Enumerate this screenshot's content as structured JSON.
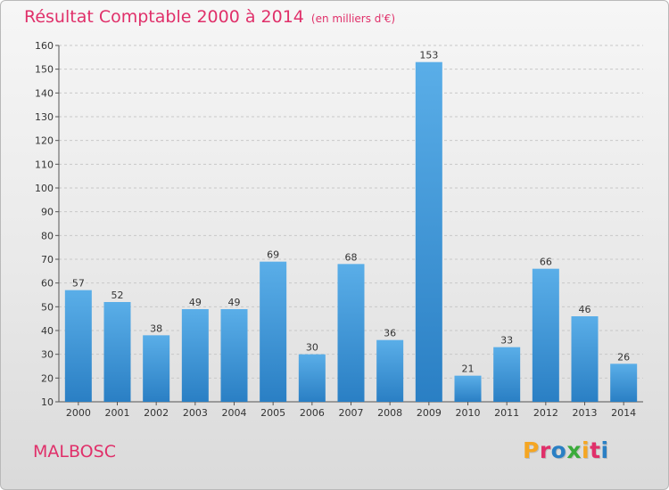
{
  "header": {
    "title": "Résultat Comptable 2000 à 2014",
    "unit": "(en milliers d'€)"
  },
  "footer": {
    "commune": "MALBOSC",
    "logo": "Proxiti"
  },
  "colors": {
    "accent": "#e0306a",
    "bar_top": "#5aaee8",
    "bar_bottom": "#2a7fc4",
    "logo_letters": [
      "#f5a623",
      "#e0306a",
      "#2a7fc4",
      "#3aab3a",
      "#f5a623",
      "#e0306a",
      "#2a7fc4"
    ]
  },
  "chart_data": {
    "type": "bar",
    "title": "Résultat Comptable 2000 à 2014",
    "subtitle": "(en milliers d'€)",
    "xlabel": "",
    "ylabel": "",
    "categories": [
      "2000",
      "2001",
      "2002",
      "2003",
      "2004",
      "2005",
      "2006",
      "2007",
      "2008",
      "2009",
      "2010",
      "2011",
      "2012",
      "2013",
      "2014"
    ],
    "values": [
      57,
      52,
      38,
      49,
      49,
      69,
      30,
      68,
      36,
      153,
      21,
      33,
      66,
      46,
      26
    ],
    "ylim": [
      10,
      160
    ],
    "yticks": [
      10,
      20,
      30,
      40,
      50,
      60,
      70,
      80,
      90,
      100,
      110,
      120,
      130,
      140,
      150,
      160
    ],
    "grid": true,
    "legend": "none"
  }
}
